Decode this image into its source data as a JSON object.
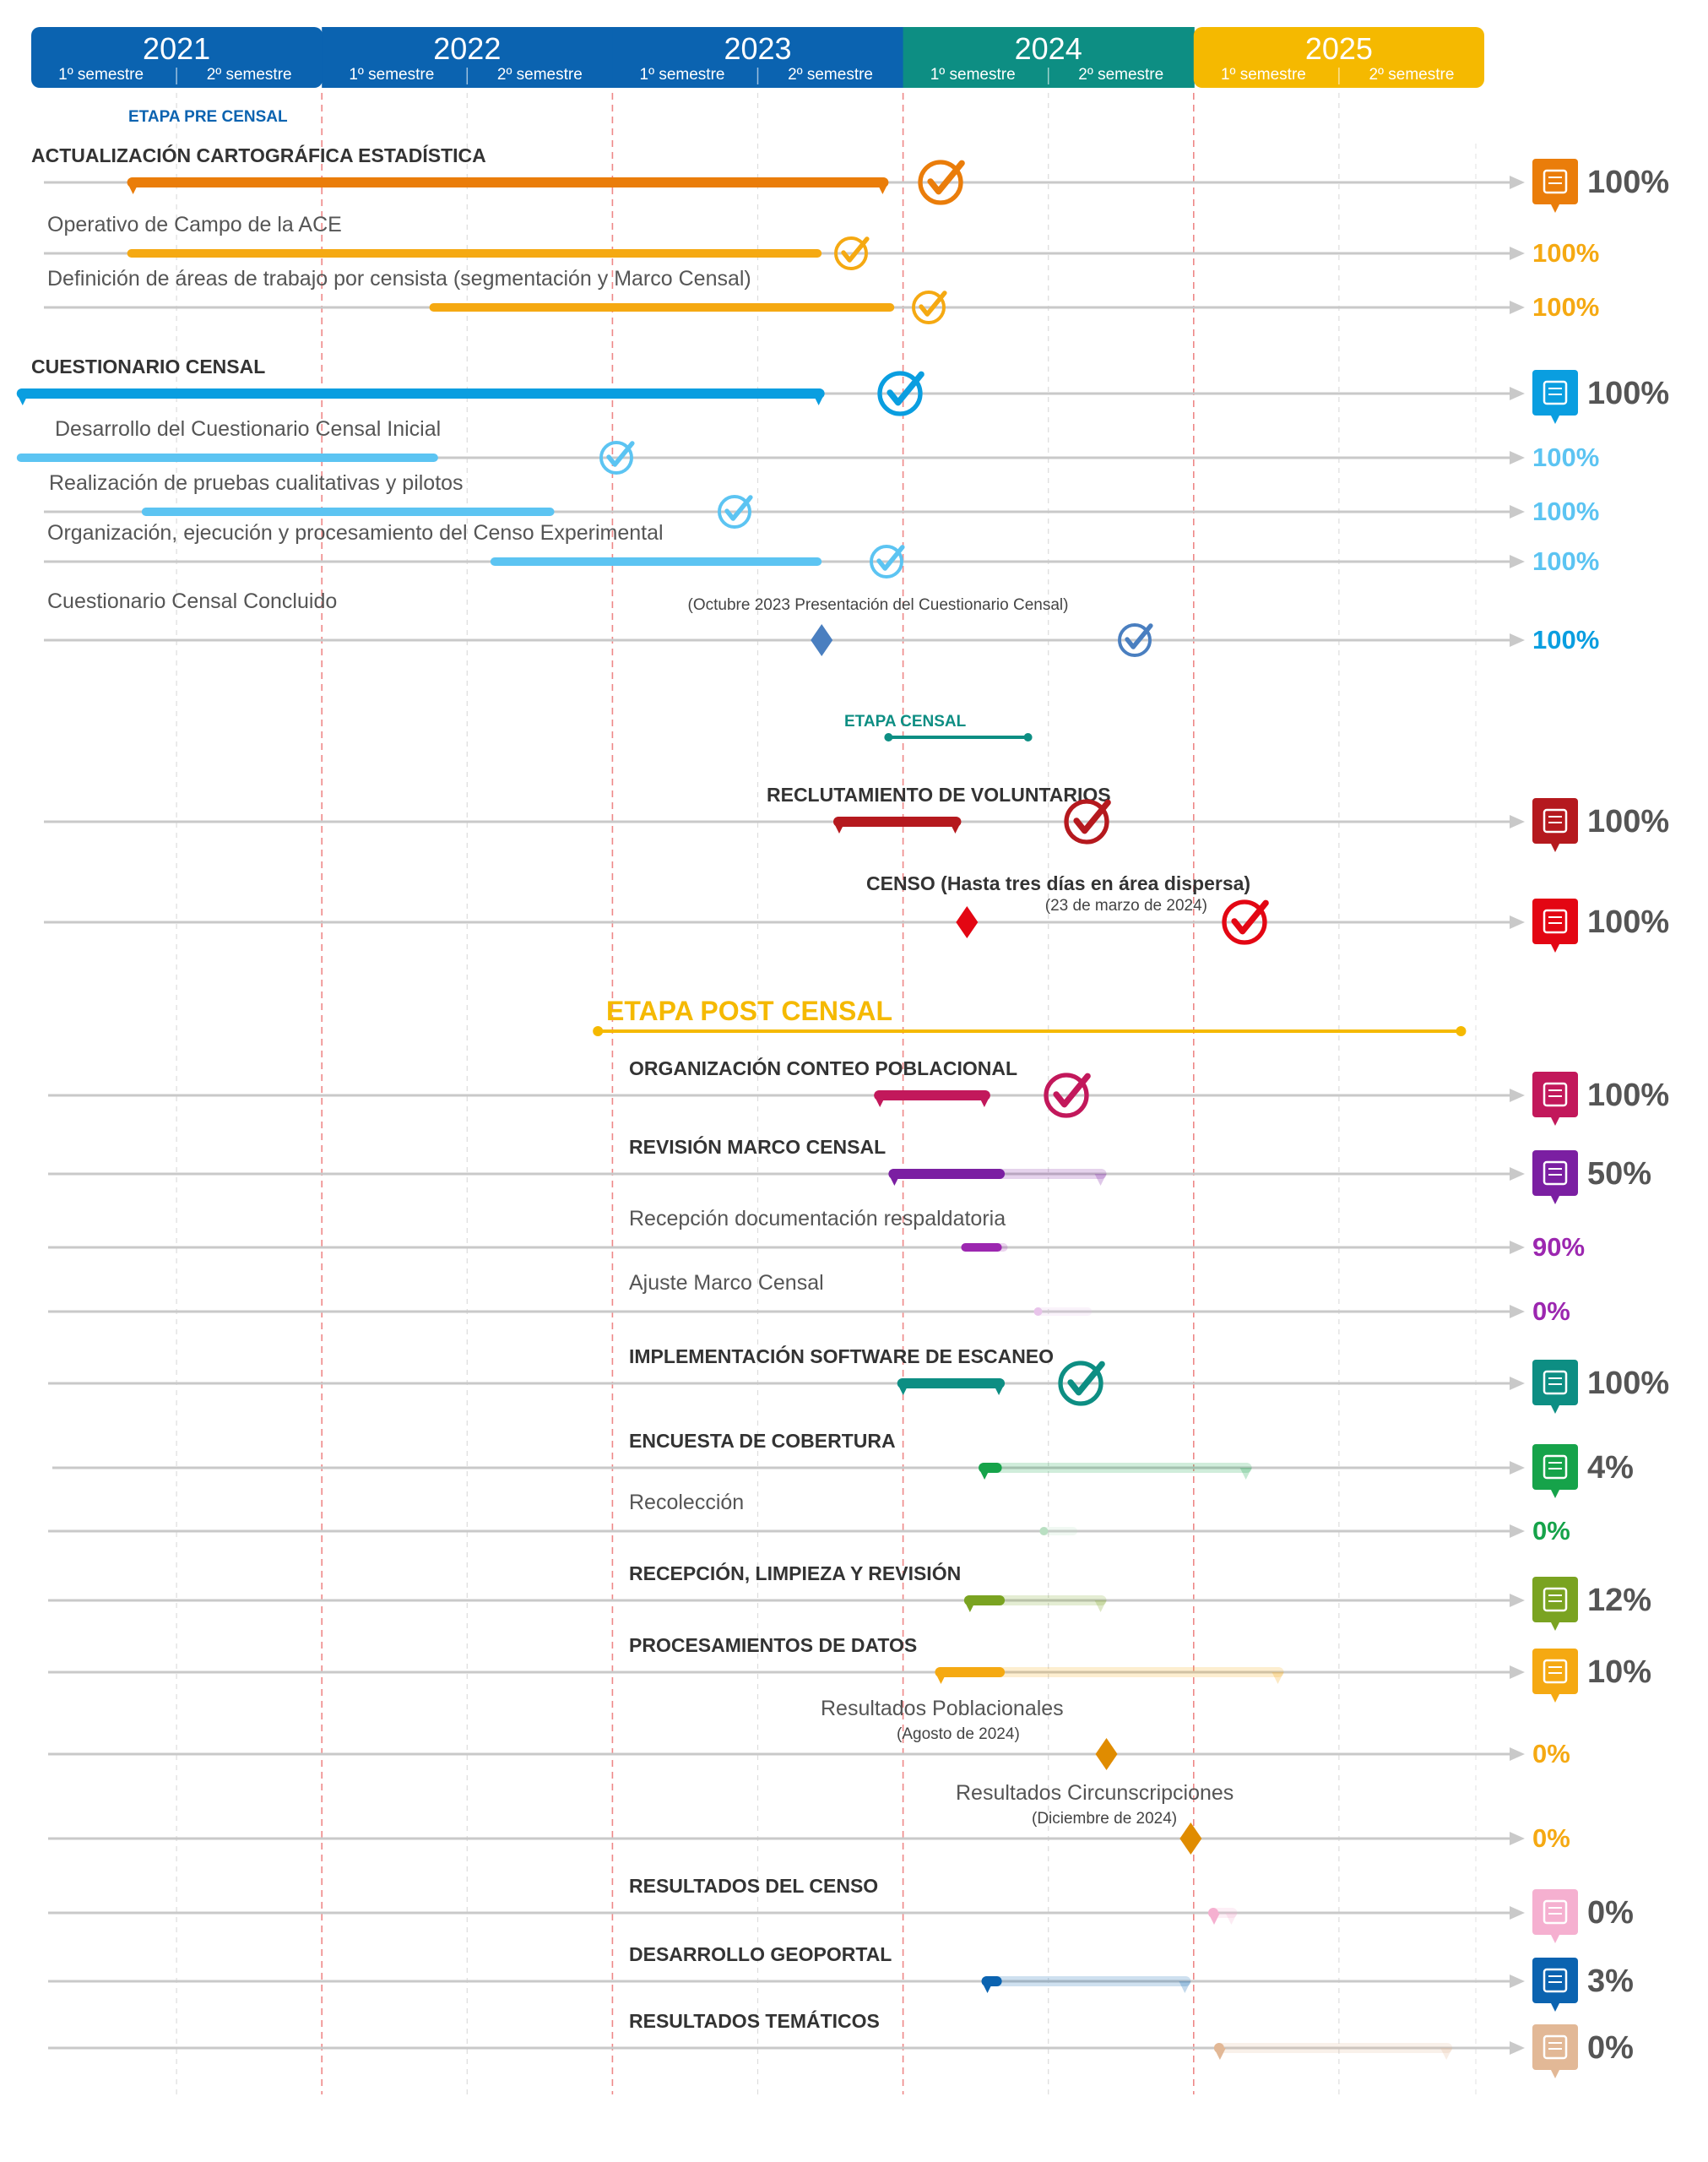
{
  "header": {
    "years": [
      {
        "label": "2021",
        "color": "#0b63b0"
      },
      {
        "label": "2022",
        "color": "#0b63b0"
      },
      {
        "label": "2023",
        "color": "#0b63b0"
      },
      {
        "label": "2024",
        "color": "#0d8e83"
      },
      {
        "label": "2025",
        "color": "#f5b900"
      }
    ],
    "semesters": [
      "1º semestre",
      "2º semestre"
    ]
  },
  "stages": {
    "pre": {
      "label": "ETAPA PRE CENSAL",
      "color": "#0b63b0"
    },
    "censal": {
      "label": "ETAPA CENSAL",
      "color": "#0d8e83",
      "start": 2022.95,
      "end": 2023.43
    },
    "post": {
      "label": "ETAPA POST CENSAL",
      "color": "#f5b900",
      "start": 2021.95,
      "end": 2024.92
    }
  },
  "chart_data": {
    "type": "gantt",
    "x_axis": "semesters 2021–2025",
    "tasks": [
      {
        "label": "ACTUALIZACIÓN CARTOGRÁFICA ESTADÍSTICA",
        "bold": true,
        "color": "#ea7d0a",
        "start": 2020.33,
        "end": 2022.95,
        "progress_label": "100%",
        "status": "complete",
        "icon": "house-icon"
      },
      {
        "label": "Operativo de Campo de la ACE",
        "bold": false,
        "color": "#f5a912",
        "start": 2020.33,
        "end": 2022.72,
        "progress_label": "100%",
        "status": "complete"
      },
      {
        "label": "Definición de áreas de trabajo por censista (segmentación y Marco Censal)",
        "bold": false,
        "color": "#f5a912",
        "start": 2021.37,
        "end": 2022.97,
        "progress_label": "100%",
        "status": "complete"
      },
      {
        "label": "CUESTIONARIO CENSAL",
        "bold": true,
        "color": "#0a9ee0",
        "start": 2019.95,
        "end": 2022.73,
        "progress_label": "100%",
        "status": "complete",
        "icon": "questionnaire-icon"
      },
      {
        "label": "Desarrollo del Cuestionario Censal Inicial",
        "bold": false,
        "color": "#5cc4f2",
        "start": 2019.95,
        "end": 2021.4,
        "progress_label": "100%",
        "status": "complete"
      },
      {
        "label": "Realización de pruebas cualitativas y pilotos",
        "bold": false,
        "color": "#5cc4f2",
        "start": 2020.38,
        "end": 2021.8,
        "progress_label": "100%",
        "status": "complete"
      },
      {
        "label": "Organización, ejecución y procesamiento del Censo Experimental",
        "bold": false,
        "color": "#5cc4f2",
        "start": 2021.58,
        "end": 2022.72,
        "progress_label": "100%",
        "status": "complete"
      },
      {
        "label": "Cuestionario Censal Concluido",
        "bold": false,
        "color": "#4a7fc0",
        "milestone": 2022.72,
        "note": "(Octubre 2023 Presentación del Cuestionario Censal)",
        "progress_label": "100%",
        "status": "complete"
      },
      {
        "label": "RECLUTAMIENTO DE VOLUNTARIOS",
        "bold": true,
        "color": "#b5191e",
        "start": 2022.76,
        "end": 2023.2,
        "progress_label": "100%",
        "status": "complete",
        "icon": "recruitment-icon"
      },
      {
        "label": "CENSO (Hasta tres días en área dispersa)",
        "bold": true,
        "color": "#e30613",
        "milestone": 2023.22,
        "note": "(23 de marzo de 2024)",
        "progress_label": "100%",
        "status": "complete",
        "icon": "census-icon"
      },
      {
        "label": "ORGANIZACIÓN CONTEO POBLACIONAL",
        "bold": true,
        "color": "#c2185b",
        "start": 2022.9,
        "end": 2023.3,
        "progress_label": "100%",
        "status": "complete",
        "icon": "population-icon"
      },
      {
        "label": "REVISIÓN MARCO CENSAL",
        "bold": true,
        "color": "#7b1fa2",
        "start": 2022.95,
        "end": 2023.7,
        "done_until": 2023.35,
        "progress_label": "50%",
        "icon": "frame-icon"
      },
      {
        "label": "Recepción documentación respaldatoria",
        "bold": false,
        "color": "#9c27b0",
        "start": 2023.2,
        "end": 2023.36,
        "done_until": 2023.34,
        "progress_label": "90%"
      },
      {
        "label": "Ajuste Marco Censal",
        "bold": false,
        "color": "#e8c4ea",
        "start": 2023.45,
        "end": 2023.65,
        "done_until": 2023.45,
        "progress_label": "0%"
      },
      {
        "label": "IMPLEMENTACIÓN SOFTWARE DE ESCANEO",
        "bold": true,
        "color": "#0d8e83",
        "start": 2022.98,
        "end": 2023.35,
        "progress_label": "100%",
        "status": "complete",
        "icon": "scan-software-icon"
      },
      {
        "label": "ENCUESTA DE COBERTURA",
        "bold": true,
        "color": "#16a34a",
        "start": 2023.26,
        "end": 2024.2,
        "done_until": 2023.34,
        "progress_label": "4%",
        "icon": "survey-icon"
      },
      {
        "label": "Recolección",
        "bold": false,
        "color": "#b9dfc2",
        "start": 2023.47,
        "end": 2023.6,
        "done_until": 2023.47,
        "progress_label": "0%"
      },
      {
        "label": "RECEPCIÓN, LIMPIEZA Y REVISIÓN",
        "bold": true,
        "color": "#7aa321",
        "start": 2023.21,
        "end": 2023.7,
        "done_until": 2023.35,
        "progress_label": "12%",
        "icon": "review-icon"
      },
      {
        "label": "PROCESAMIENTOS DE DATOS",
        "bold": true,
        "color": "#f5a912",
        "start": 2023.11,
        "end": 2024.31,
        "done_until": 2023.35,
        "progress_label": "10%",
        "icon": "data-processing-icon"
      },
      {
        "label": "Resultados Poblacionales",
        "bold": false,
        "color": "#e08c00",
        "milestone": 2023.7,
        "note": "(Agosto de 2024)",
        "progress_label": "0%"
      },
      {
        "label": "Resultados Circunscripciones",
        "bold": false,
        "color": "#e08c00",
        "milestone": 2023.99,
        "note": "(Diciembre de 2024)",
        "progress_label": "0%"
      },
      {
        "label": "RESULTADOS DEL CENSO",
        "bold": true,
        "color": "#f5b0d0",
        "start": 2024.05,
        "end": 2024.15,
        "done_until": 2024.05,
        "progress_label": "0%",
        "icon": "results-icon"
      },
      {
        "label": "DESARROLLO GEOPORTAL",
        "bold": true,
        "color": "#0b63b0",
        "start": 2023.27,
        "end": 2023.99,
        "done_until": 2023.34,
        "progress_label": "3%",
        "icon": "geoportal-icon"
      },
      {
        "label": "RESULTADOS TEMÁTICOS",
        "bold": true,
        "color": "#e2b896",
        "start": 2024.07,
        "end": 2024.89,
        "done_until": 2024.07,
        "progress_label": "0%",
        "icon": "thematic-results-icon"
      }
    ]
  }
}
